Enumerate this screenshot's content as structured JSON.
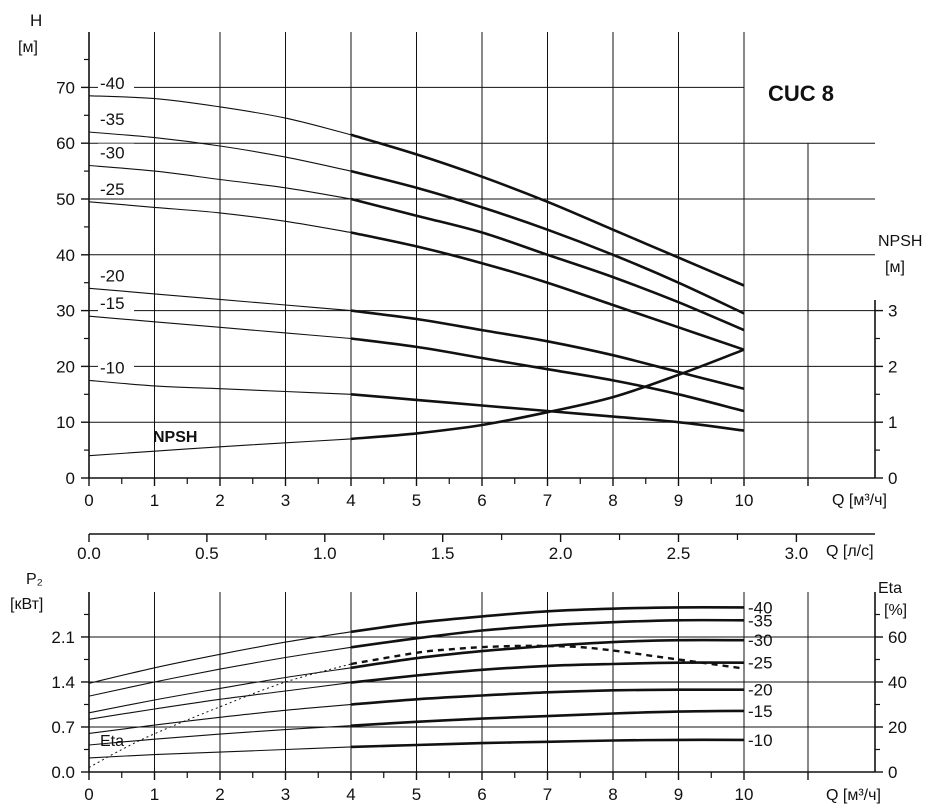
{
  "chart_data": [
    {
      "type": "line",
      "title": "CUC 8",
      "xlabel": "Q [м³/ч]",
      "ylabel_left": "H",
      "ylabel_left_unit": "[м]",
      "ylabel_right": "NPSH",
      "ylabel_right_unit": "[м]",
      "xlim": [
        0,
        10
      ],
      "ylim": [
        0,
        80
      ],
      "y2lim": [
        0,
        8
      ],
      "x_ticks": [
        "0",
        "1",
        "2",
        "3",
        "4",
        "5",
        "6",
        "7",
        "8",
        "9",
        "10"
      ],
      "y_ticks": [
        "0",
        "10",
        "20",
        "30",
        "40",
        "50",
        "60",
        "70"
      ],
      "y2_ticks": [
        "0",
        "1",
        "2",
        "3"
      ],
      "secondary_x_axis": {
        "label": "Q [л/с]",
        "ticks": [
          "0.0",
          "0.5",
          "1.0",
          "1.5",
          "2.0",
          "2.5",
          "3.0"
        ],
        "values": [
          0,
          0.5,
          1.0,
          1.5,
          2.0,
          2.5,
          3.0
        ]
      },
      "x": [
        0,
        1,
        2,
        3,
        4,
        5,
        6,
        7,
        8,
        9,
        10
      ],
      "series": [
        {
          "name": "-40",
          "values": [
            68.5,
            68.0,
            66.5,
            64.5,
            61.5,
            58.0,
            54.0,
            49.5,
            44.5,
            39.5,
            34.5
          ]
        },
        {
          "name": "-35",
          "values": [
            62.0,
            61.0,
            59.5,
            57.5,
            55.0,
            52.0,
            48.5,
            44.5,
            40.0,
            35.0,
            29.5
          ]
        },
        {
          "name": "-30",
          "values": [
            56.0,
            55.0,
            53.5,
            52.0,
            50.0,
            47.0,
            44.0,
            40.0,
            36.0,
            31.5,
            26.5
          ]
        },
        {
          "name": "-25",
          "values": [
            49.5,
            48.5,
            47.5,
            46.0,
            44.0,
            41.5,
            38.5,
            35.0,
            31.0,
            27.0,
            23.0
          ]
        },
        {
          "name": "-20",
          "values": [
            34.0,
            33.0,
            32.0,
            31.0,
            30.0,
            28.5,
            26.5,
            24.5,
            22.0,
            19.0,
            16.0
          ]
        },
        {
          "name": "-15",
          "values": [
            29.0,
            28.0,
            27.0,
            26.0,
            25.0,
            23.5,
            21.5,
            19.5,
            17.5,
            15.0,
            12.0
          ]
        },
        {
          "name": "-10",
          "values": [
            17.5,
            16.5,
            16.0,
            15.5,
            15.0,
            14.0,
            13.0,
            12.0,
            11.0,
            10.0,
            8.5
          ]
        }
      ],
      "npsh": {
        "label": "NPSH",
        "x": [
          0,
          1,
          2,
          3,
          4,
          5,
          6,
          7,
          8,
          9,
          10
        ],
        "values": [
          0.4,
          0.48,
          0.56,
          0.63,
          0.7,
          0.8,
          0.95,
          1.18,
          1.45,
          1.85,
          2.3
        ]
      }
    },
    {
      "type": "line",
      "xlabel": "Q [м³/ч]",
      "ylabel_left": "P₂",
      "ylabel_left_unit": "[кВт]",
      "ylabel_right": "Eta",
      "ylabel_right_unit": "[%]",
      "xlim": [
        0,
        10
      ],
      "ylim": [
        0,
        2.8
      ],
      "y2lim": [
        0,
        80
      ],
      "x_ticks": [
        "0",
        "1",
        "2",
        "3",
        "4",
        "5",
        "6",
        "7",
        "8",
        "9",
        "10"
      ],
      "y_ticks": [
        "0.0",
        "0.7",
        "1.4",
        "2.1"
      ],
      "y2_ticks": [
        "0",
        "20",
        "40",
        "60"
      ],
      "x": [
        0,
        1,
        2,
        3,
        4,
        5,
        6,
        7,
        8,
        9,
        10
      ],
      "series": [
        {
          "name": "-40",
          "values": [
            1.38,
            1.62,
            1.83,
            2.02,
            2.18,
            2.32,
            2.42,
            2.5,
            2.54,
            2.56,
            2.56
          ]
        },
        {
          "name": "-35",
          "values": [
            1.18,
            1.4,
            1.6,
            1.78,
            1.94,
            2.08,
            2.2,
            2.28,
            2.33,
            2.36,
            2.36
          ]
        },
        {
          "name": "-30",
          "values": [
            0.92,
            1.12,
            1.3,
            1.47,
            1.62,
            1.77,
            1.88,
            1.96,
            2.02,
            2.05,
            2.05
          ]
        },
        {
          "name": "-25",
          "values": [
            0.82,
            0.98,
            1.13,
            1.26,
            1.39,
            1.5,
            1.59,
            1.65,
            1.68,
            1.7,
            1.7
          ]
        },
        {
          "name": "-20",
          "values": [
            0.6,
            0.73,
            0.85,
            0.96,
            1.05,
            1.13,
            1.19,
            1.24,
            1.27,
            1.28,
            1.28
          ]
        },
        {
          "name": "-15",
          "values": [
            0.42,
            0.51,
            0.59,
            0.66,
            0.72,
            0.78,
            0.83,
            0.87,
            0.91,
            0.94,
            0.95
          ]
        },
        {
          "name": "-10",
          "values": [
            0.22,
            0.27,
            0.31,
            0.35,
            0.39,
            0.42,
            0.45,
            0.47,
            0.49,
            0.5,
            0.5
          ]
        }
      ],
      "eta": {
        "label": "Eta",
        "x": [
          0,
          0.5,
          1,
          2,
          3,
          4,
          5,
          5.5,
          6,
          6.5,
          7,
          7.5,
          8,
          8.5,
          9,
          9.5,
          10
        ],
        "values": [
          2,
          10,
          17,
          29,
          40,
          48,
          53,
          54.5,
          55.5,
          56,
          56,
          55.5,
          54,
          52,
          50,
          48,
          46
        ]
      }
    }
  ]
}
